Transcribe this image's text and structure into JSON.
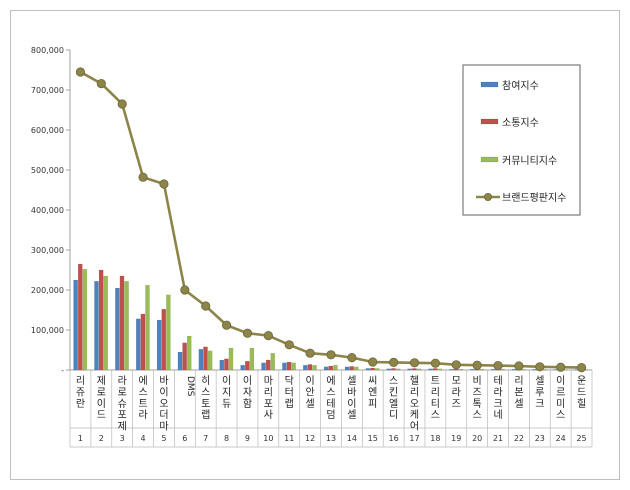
{
  "chart_data": {
    "type": "bar",
    "title": "",
    "xlabel": "",
    "ylabel": "",
    "ylim": [
      0,
      800000
    ],
    "yticks": [
      "-",
      "100,000",
      "200,000",
      "300,000",
      "400,000",
      "500,000",
      "600,000",
      "700,000",
      "800,000"
    ],
    "grid": false,
    "legend_position": "top-right",
    "categories": [
      "리쥬란",
      "제로이드",
      "라로슈포제",
      "에스트라",
      "바이오더마",
      "DMS",
      "히스토랩",
      "이지듀",
      "이자함",
      "마리포사",
      "닥터랩",
      "이안셀",
      "에스테덤",
      "셀바이셀",
      "씨엔피",
      "스킨엘디",
      "헬리오케어",
      "트리티스",
      "모라즈",
      "비즈톡스",
      "테라크네",
      "리본셀",
      "셀루크",
      "이르미스",
      "운드힐"
    ],
    "rank_labels": [
      "1",
      "2",
      "3",
      "4",
      "5",
      "6",
      "7",
      "8",
      "9",
      "10",
      "11",
      "12",
      "13",
      "14",
      "15",
      "16",
      "17",
      "18",
      "19",
      "20",
      "21",
      "22",
      "23",
      "24",
      "25"
    ],
    "series": [
      {
        "name": "참여지수",
        "kind": "bar",
        "color": "#4f81bd",
        "values": [
          225000,
          222000,
          205000,
          128000,
          125000,
          45000,
          52000,
          25000,
          12000,
          18000,
          18000,
          12000,
          8000,
          8000,
          4000,
          3000,
          3000,
          3000,
          2000,
          2000,
          2000,
          2000,
          2000,
          1500,
          1500
        ]
      },
      {
        "name": "소통지수",
        "kind": "bar",
        "color": "#c0504d",
        "values": [
          265000,
          250000,
          235000,
          140000,
          152000,
          68000,
          58000,
          28000,
          22000,
          25000,
          20000,
          14000,
          10000,
          9000,
          5000,
          4000,
          4000,
          4000,
          3000,
          3000,
          3000,
          3000,
          2500,
          2000,
          2000
        ]
      },
      {
        "name": "커뮤니티지수",
        "kind": "bar",
        "color": "#9bbb59",
        "values": [
          252000,
          235000,
          222000,
          212000,
          188000,
          85000,
          48000,
          55000,
          55000,
          42000,
          18000,
          12000,
          12000,
          8000,
          4000,
          3000,
          3000,
          3000,
          2500,
          2500,
          2500,
          2000,
          2000,
          1500,
          1500
        ]
      },
      {
        "name": "브랜드평판지수",
        "kind": "line",
        "color": "#8c8448",
        "values": [
          745000,
          716000,
          665000,
          482000,
          465000,
          200000,
          160000,
          112000,
          92000,
          86000,
          63000,
          42000,
          38000,
          31000,
          20000,
          19000,
          18000,
          17000,
          13000,
          12000,
          11000,
          10000,
          8000,
          7000,
          6000
        ]
      }
    ]
  }
}
